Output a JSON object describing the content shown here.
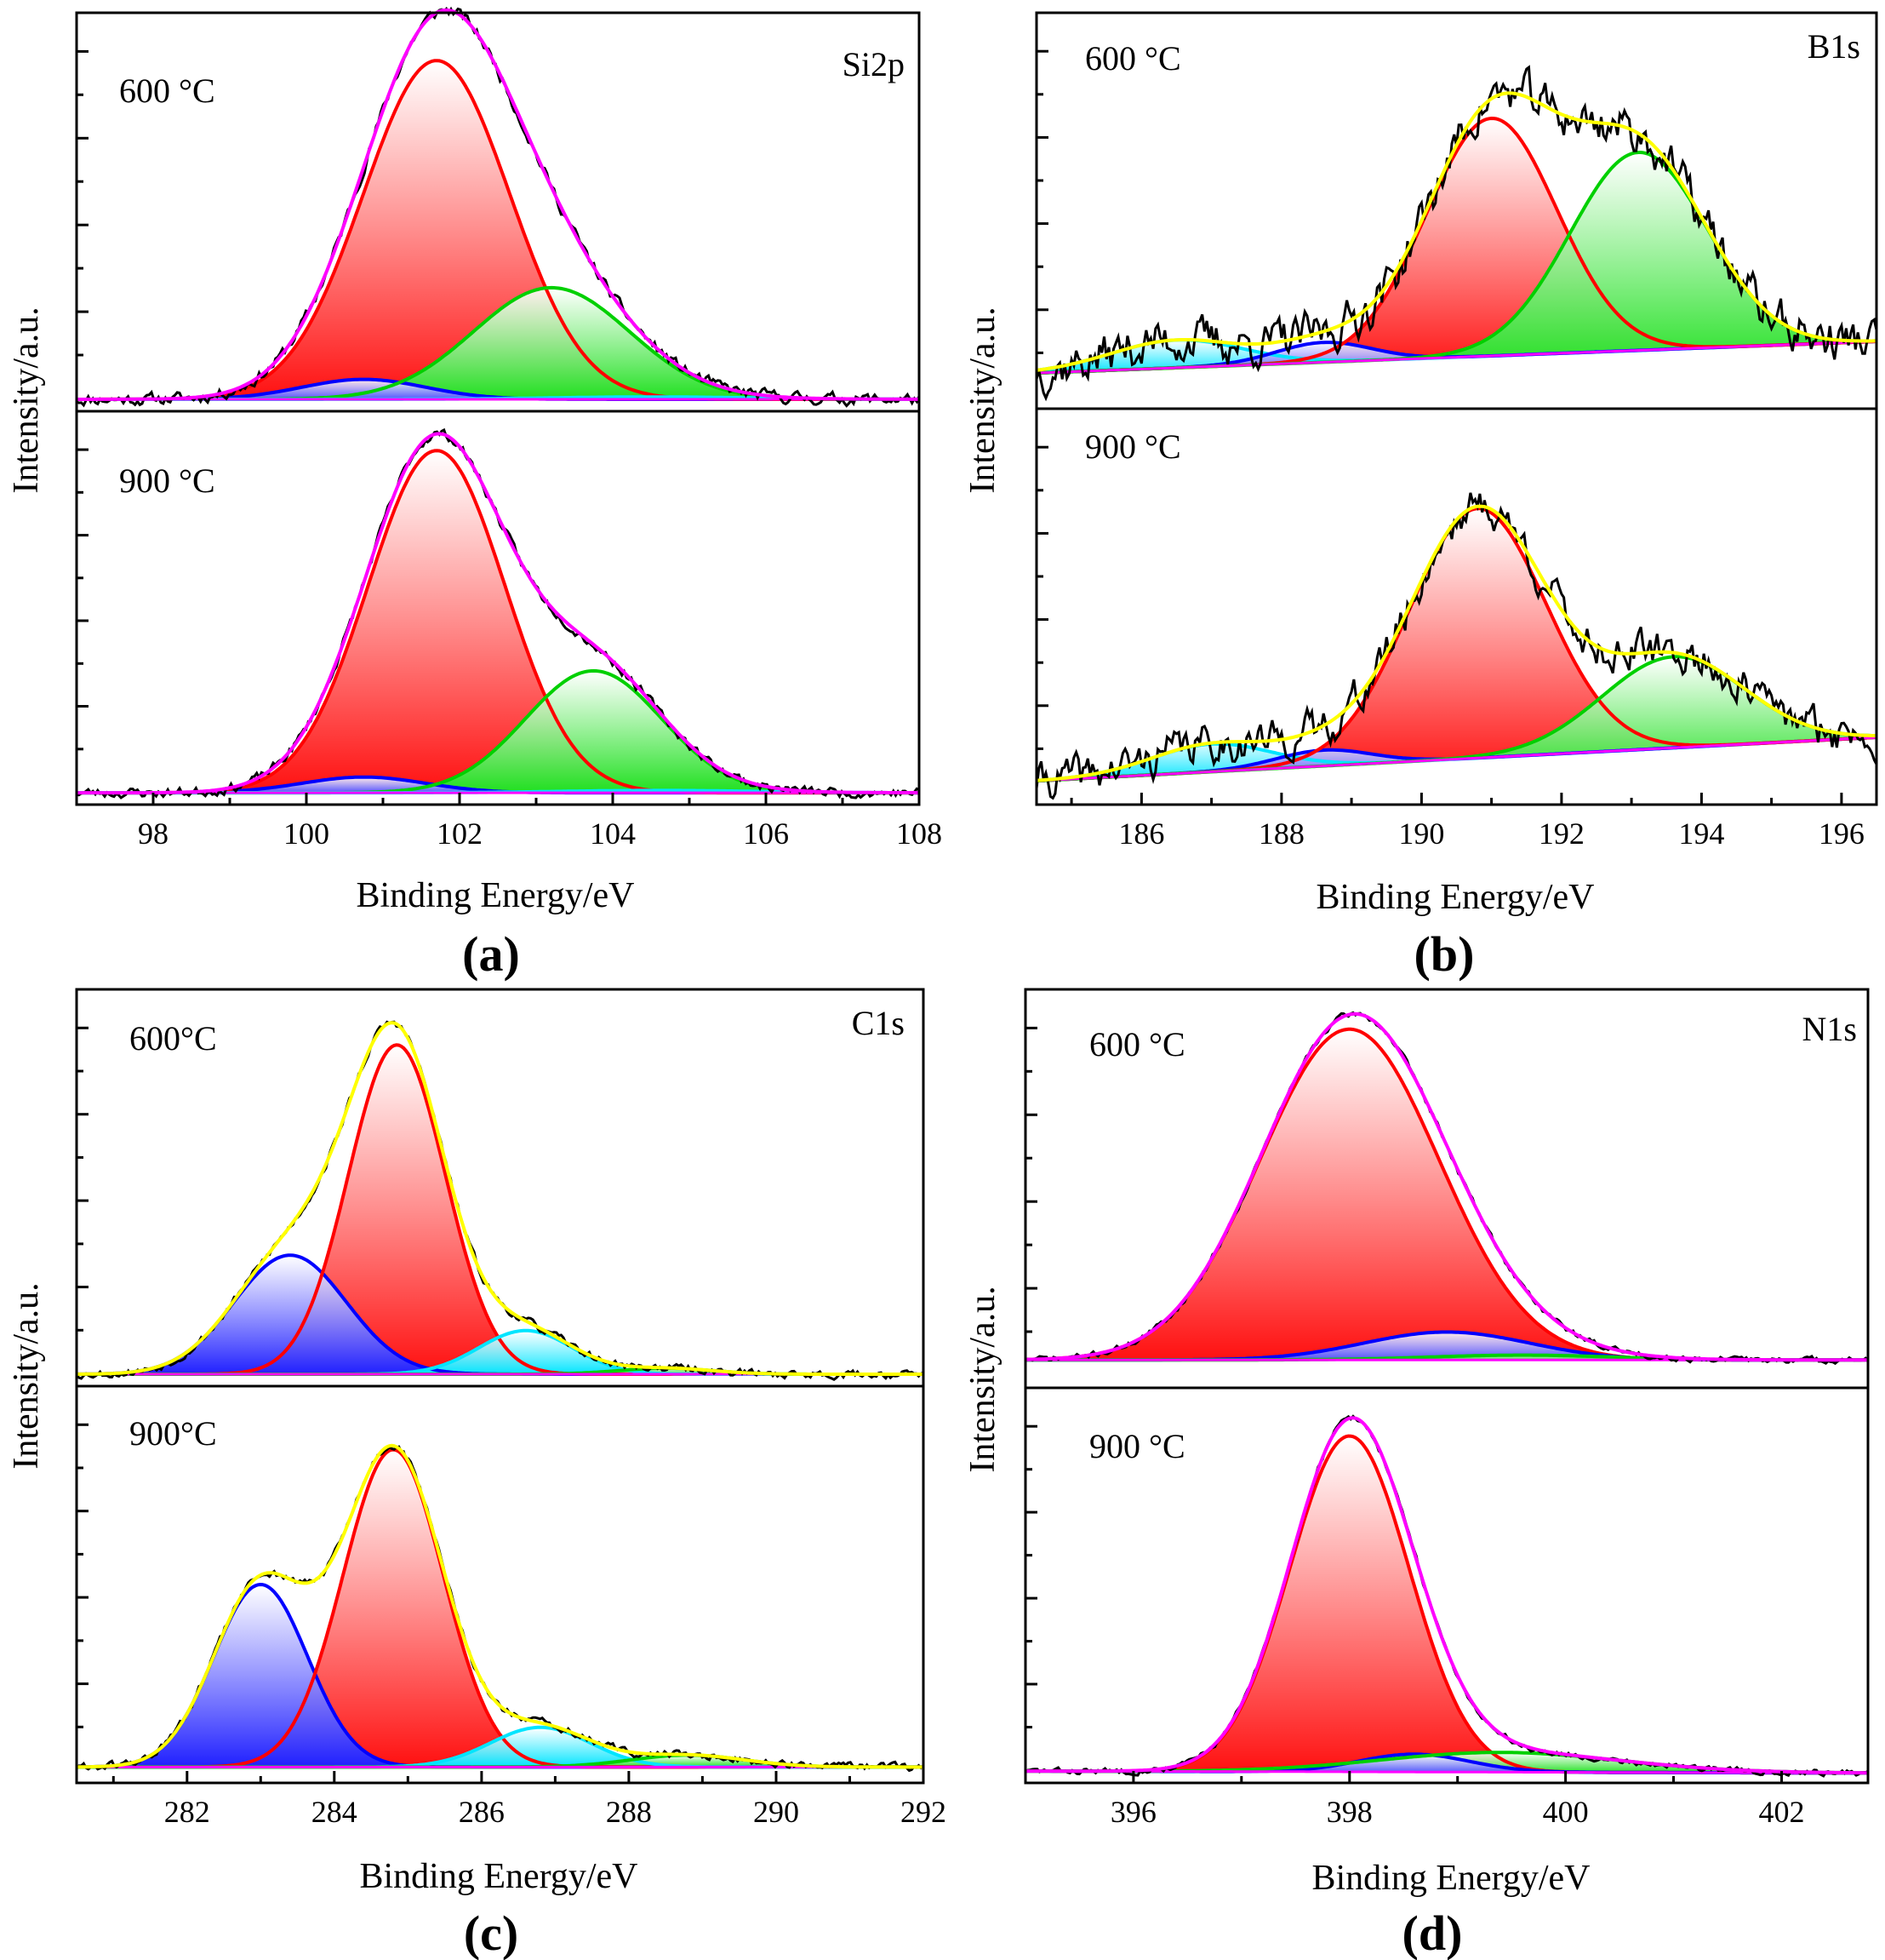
{
  "chart_data": [
    {
      "type": "line",
      "panel_label": "(a)",
      "element": "Si2p",
      "xlabel": "Binding Energy/eV",
      "ylabel": "Intensity/a.u.",
      "xlim": [
        97,
        108
      ],
      "xticks": [
        98,
        100,
        102,
        104,
        106,
        108
      ],
      "x_reversed": false,
      "temps": [
        "600 °C",
        "900 °C"
      ],
      "subplots": [
        {
          "temp": "600 °C",
          "baseline": 0.03,
          "envelope_color": "#ff00ff",
          "noise": 0.012,
          "seed": 11,
          "peaks": [
            {
              "center": 100.75,
              "fwhm": 1.9,
              "amp": 0.05,
              "color": "#0000ff",
              "fill": "#5050ff"
            },
            {
              "center": 101.7,
              "fwhm": 2.25,
              "amp": 0.85,
              "color": "#ff0000",
              "fill": "#ff1010"
            },
            {
              "center": 103.2,
              "fwhm": 2.4,
              "amp": 0.28,
              "color": "#00d000",
              "fill": "#20e020"
            },
            {
              "center": 104.5,
              "fwhm": 3.0,
              "amp": 0.006,
              "color": "#00e5ff",
              "fill": "#00e5ff"
            }
          ]
        },
        {
          "temp": "900 °C",
          "baseline": 0.03,
          "envelope_color": "#ff00ff",
          "noise": 0.01,
          "seed": 23,
          "peaks": [
            {
              "center": 100.75,
              "fwhm": 1.9,
              "amp": 0.04,
              "color": "#0000ff",
              "fill": "#5050ff"
            },
            {
              "center": 101.7,
              "fwhm": 2.1,
              "amp": 0.87,
              "color": "#ff0000",
              "fill": "#ff1010"
            },
            {
              "center": 103.75,
              "fwhm": 2.1,
              "amp": 0.31,
              "color": "#00d000",
              "fill": "#20e020"
            },
            {
              "center": 104.6,
              "fwhm": 3.0,
              "amp": 0.006,
              "color": "#00e5ff",
              "fill": "#00e5ff"
            }
          ]
        }
      ]
    },
    {
      "type": "line",
      "panel_label": "(b)",
      "element": "B1s",
      "xlabel": "Binding Energy/eV",
      "ylabel": "Intensity/a.u.",
      "xlim": [
        184.5,
        196.5
      ],
      "xticks": [
        186,
        188,
        190,
        192,
        194,
        196
      ],
      "x_reversed": false,
      "temps": [
        "600 °C",
        "900 °C"
      ],
      "subplots": [
        {
          "temp": "600 °C",
          "baseline": [
            0.09,
            0.17
          ],
          "envelope_color": "#ffff00",
          "noise": 0.045,
          "seed": 37,
          "peaks": [
            {
              "center": 186.5,
              "fwhm": 2.2,
              "amp": 0.07,
              "color": "#00e5ff",
              "fill": "#00e5ff"
            },
            {
              "center": 188.6,
              "fwhm": 1.6,
              "amp": 0.05,
              "color": "#0000ff",
              "fill": "#5050ff"
            },
            {
              "center": 191.0,
              "fwhm": 2.2,
              "amp": 0.6,
              "color": "#ff0000",
              "fill": "#ff1010"
            },
            {
              "center": 193.1,
              "fwhm": 2.3,
              "amp": 0.5,
              "color": "#00d000",
              "fill": "#20e020"
            }
          ]
        },
        {
          "temp": "900 °C",
          "baseline": [
            0.06,
            0.17
          ],
          "envelope_color": "#ffff00",
          "noise": 0.04,
          "seed": 41,
          "peaks": [
            {
              "center": 187.0,
              "fwhm": 2.0,
              "amp": 0.07,
              "color": "#00e5ff",
              "fill": "#00e5ff"
            },
            {
              "center": 188.6,
              "fwhm": 1.6,
              "amp": 0.04,
              "color": "#0000ff",
              "fill": "#5050ff"
            },
            {
              "center": 190.8,
              "fwhm": 2.3,
              "amp": 0.63,
              "color": "#ff0000",
              "fill": "#ff1010"
            },
            {
              "center": 193.6,
              "fwhm": 2.4,
              "amp": 0.23,
              "color": "#00d000",
              "fill": "#20e020"
            }
          ]
        }
      ]
    },
    {
      "type": "line",
      "panel_label": "(c)",
      "element": "C1s",
      "xlabel": "Binding Energy/eV",
      "ylabel": "Intensity/a.u.",
      "xlim": [
        280.5,
        292
      ],
      "xticks": [
        282,
        284,
        286,
        288,
        290,
        292
      ],
      "x_reversed": false,
      "temps": [
        "600°C",
        "900°C"
      ],
      "subplots": [
        {
          "temp": "600°C",
          "baseline": 0.03,
          "envelope_color": "#ffff00",
          "noise": 0.008,
          "seed": 53,
          "peaks": [
            {
              "center": 283.4,
              "fwhm": 1.8,
              "amp": 0.3,
              "color": "#0000ff",
              "fill": "#2020ff"
            },
            {
              "center": 284.85,
              "fwhm": 1.55,
              "amp": 0.83,
              "color": "#ff0000",
              "fill": "#ff1010"
            },
            {
              "center": 286.6,
              "fwhm": 1.5,
              "amp": 0.11,
              "color": "#00e5ff",
              "fill": "#00e5ff"
            },
            {
              "center": 288.5,
              "fwhm": 1.5,
              "amp": 0.015,
              "color": "#00d000",
              "fill": "#20e020"
            }
          ]
        },
        {
          "temp": "900°C",
          "baseline": 0.04,
          "envelope_color": "#ffff00",
          "noise": 0.008,
          "seed": 61,
          "peaks": [
            {
              "center": 283.0,
              "fwhm": 1.5,
              "amp": 0.46,
              "color": "#0000ff",
              "fill": "#2020ff"
            },
            {
              "center": 284.8,
              "fwhm": 1.6,
              "amp": 0.8,
              "color": "#ff0000",
              "fill": "#ff1010"
            },
            {
              "center": 286.8,
              "fwhm": 1.6,
              "amp": 0.1,
              "color": "#00e5ff",
              "fill": "#00e5ff"
            },
            {
              "center": 288.8,
              "fwhm": 1.8,
              "amp": 0.03,
              "color": "#00d000",
              "fill": "#20e020"
            }
          ]
        }
      ]
    },
    {
      "type": "line",
      "panel_label": "(d)",
      "element": "N1s",
      "xlabel": "Binding Energy/eV",
      "ylabel": "Intensity/a.u.",
      "xlim": [
        395,
        402.8
      ],
      "xticks": [
        396,
        398,
        400,
        402
      ],
      "x_reversed": false,
      "temps": [
        "600 °C",
        "900 °C"
      ],
      "subplots": [
        {
          "temp": "600 °C",
          "baseline": 0.07,
          "envelope_color": "#ff00ff",
          "noise": 0.006,
          "seed": 71,
          "peaks": [
            {
              "center": 398.0,
              "fwhm": 1.95,
              "amp": 0.83,
              "color": "#ff0000",
              "fill": "#ff1010"
            },
            {
              "center": 398.9,
              "fwhm": 1.8,
              "amp": 0.07,
              "color": "#0000ff",
              "fill": "#5050ff"
            },
            {
              "center": 399.6,
              "fwhm": 2.0,
              "amp": 0.012,
              "color": "#00d000",
              "fill": "#20e020"
            }
          ]
        },
        {
          "temp": "900 °C",
          "baseline": [
            0.03,
            0.025
          ],
          "envelope_color": "#ff00ff",
          "noise": 0.006,
          "seed": 83,
          "peaks": [
            {
              "center": 398.0,
              "fwhm": 1.3,
              "amp": 0.85,
              "color": "#ff0000",
              "fill": "#ff1010"
            },
            {
              "center": 398.6,
              "fwhm": 1.2,
              "amp": 0.045,
              "color": "#0000ff",
              "fill": "#5050ff"
            },
            {
              "center": 399.4,
              "fwhm": 2.6,
              "amp": 0.05,
              "color": "#00d000",
              "fill": "#20e020"
            }
          ]
        }
      ]
    }
  ]
}
